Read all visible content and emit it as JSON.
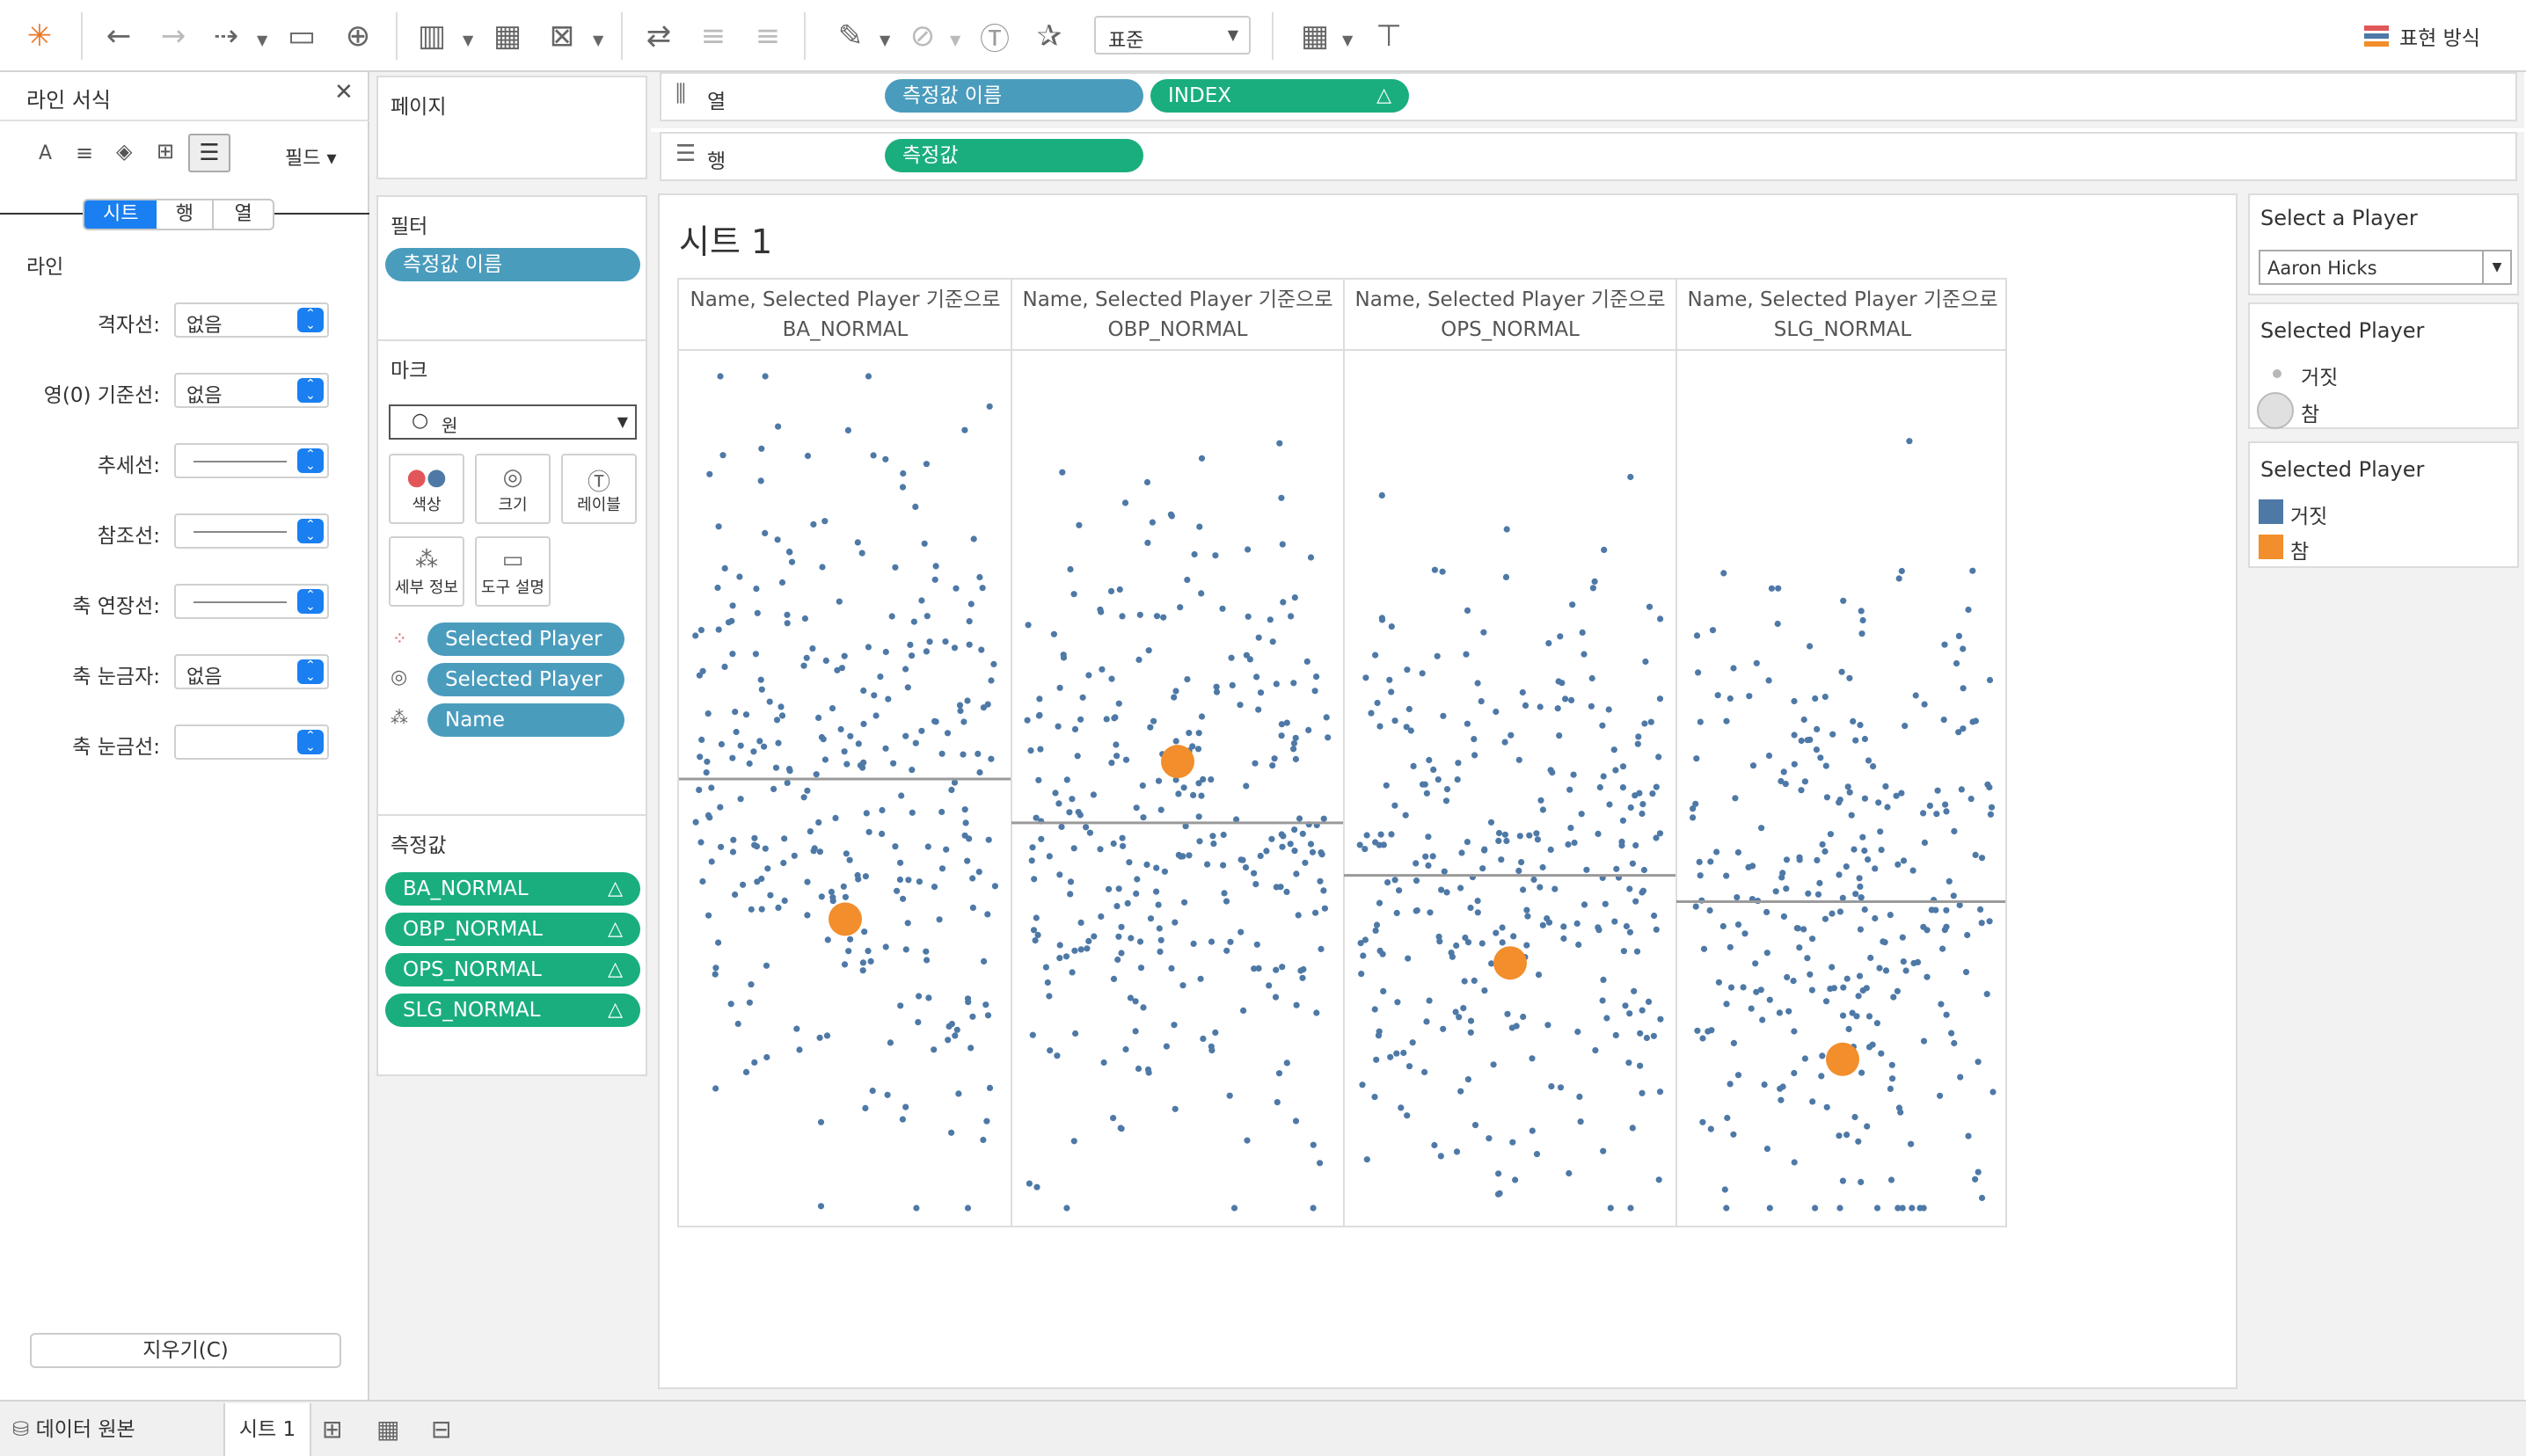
{
  "toolbar": {
    "view_mode": "표준",
    "show_me": "표현 방식"
  },
  "format_pane": {
    "title": "라인 서식",
    "fields_button": "필드",
    "tabs": [
      "시트",
      "행",
      "열"
    ],
    "section": "라인",
    "rows": [
      {
        "label": "격자선:",
        "value": "없음"
      },
      {
        "label": "영(0) 기준선:",
        "value": "없음"
      },
      {
        "label": "추세선:",
        "value": ""
      },
      {
        "label": "참조선:",
        "value": ""
      },
      {
        "label": "축 연장선:",
        "value": ""
      },
      {
        "label": "축 눈금자:",
        "value": "없음"
      },
      {
        "label": "축 눈금선:",
        "value": ""
      }
    ],
    "clear_button": "지우기(C)"
  },
  "cards": {
    "pages": "페이지",
    "filters": {
      "title": "필터",
      "pills": [
        "측정값 이름"
      ]
    },
    "marks": {
      "title": "마크",
      "type": "원",
      "buttons": [
        "색상",
        "크기",
        "레이블",
        "세부 정보",
        "도구 설명"
      ],
      "pills": [
        "Selected Player",
        "Selected Player",
        "Name"
      ]
    },
    "measure_values": {
      "title": "측정값",
      "pills": [
        "BA_NORMAL",
        "OBP_NORMAL",
        "OPS_NORMAL",
        "SLG_NORMAL"
      ]
    }
  },
  "shelves": {
    "columns": {
      "label": "열",
      "pills": [
        "측정값 이름",
        "INDEX"
      ]
    },
    "rows": {
      "label": "행",
      "pills": [
        "측정값"
      ]
    }
  },
  "worksheet": {
    "title": "시트 1"
  },
  "chart_data": {
    "type": "scatter",
    "panes": [
      {
        "header": "Name, Selected Player 기준으로",
        "measure": "BA_NORMAL",
        "mean_position": 0.49,
        "selected_position": 0.65
      },
      {
        "header": "Name, Selected Player 기준으로",
        "measure": "OBP_NORMAL",
        "mean_position": 0.54,
        "selected_position": 0.47
      },
      {
        "header": "Name, Selected Player 기준으로",
        "measure": "OPS_NORMAL",
        "mean_position": 0.6,
        "selected_position": 0.7
      },
      {
        "header": "Name, Selected Player 기준으로",
        "measure": "SLG_NORMAL",
        "mean_position": 0.63,
        "selected_position": 0.81
      }
    ],
    "colors": {
      "false": "#4e79a7",
      "true": "#f28e2b"
    },
    "grid": false
  },
  "right_panel": {
    "param_title": "Select a Player",
    "param_value": "Aaron Hicks",
    "size_legend": {
      "title": "Selected Player",
      "items": [
        "거짓",
        "참"
      ]
    },
    "color_legend": {
      "title": "Selected Player",
      "items": [
        "거짓",
        "참"
      ]
    }
  },
  "bottom_bar": {
    "data_source": "데이터 원본",
    "sheet_tab": "시트 1"
  }
}
